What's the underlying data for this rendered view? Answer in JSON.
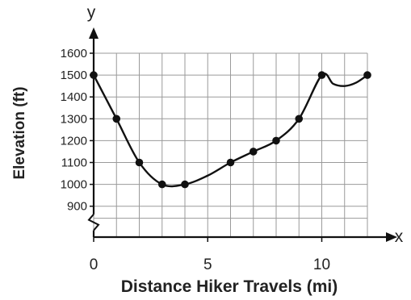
{
  "chart_data": {
    "type": "line",
    "title": "",
    "xlabel": "Distance Hiker Travels (mi)",
    "ylabel": "Elevation (ft)",
    "x_axis_letter": "x",
    "y_axis_letter": "y",
    "xlim": [
      0,
      12
    ],
    "ylim": [
      800,
      1600
    ],
    "y_axis_break": true,
    "x_ticks": [
      0,
      5,
      10
    ],
    "y_ticks": [
      900,
      1000,
      1100,
      1200,
      1300,
      1400,
      1500,
      1600
    ],
    "grid": true,
    "points": [
      {
        "x": 0,
        "y": 1500
      },
      {
        "x": 1,
        "y": 1300
      },
      {
        "x": 2,
        "y": 1100
      },
      {
        "x": 3,
        "y": 1000
      },
      {
        "x": 4,
        "y": 1000
      },
      {
        "x": 6,
        "y": 1100
      },
      {
        "x": 7,
        "y": 1150
      },
      {
        "x": 8,
        "y": 1200
      },
      {
        "x": 9,
        "y": 1300
      },
      {
        "x": 10,
        "y": 1500
      },
      {
        "x": 12,
        "y": 1500
      }
    ],
    "curve": [
      [
        0,
        1500
      ],
      [
        1,
        1300
      ],
      [
        2,
        1100
      ],
      [
        3,
        1000
      ],
      [
        4,
        1000
      ],
      [
        5,
        1040
      ],
      [
        6,
        1100
      ],
      [
        7,
        1150
      ],
      [
        8,
        1200
      ],
      [
        9,
        1300
      ],
      [
        10,
        1500
      ],
      [
        10.5,
        1460
      ],
      [
        11,
        1450
      ],
      [
        11.5,
        1465
      ],
      [
        12,
        1500
      ]
    ],
    "colors": {
      "line": "#111111",
      "grid": "#9a9a9a",
      "axis": "#111111"
    }
  }
}
